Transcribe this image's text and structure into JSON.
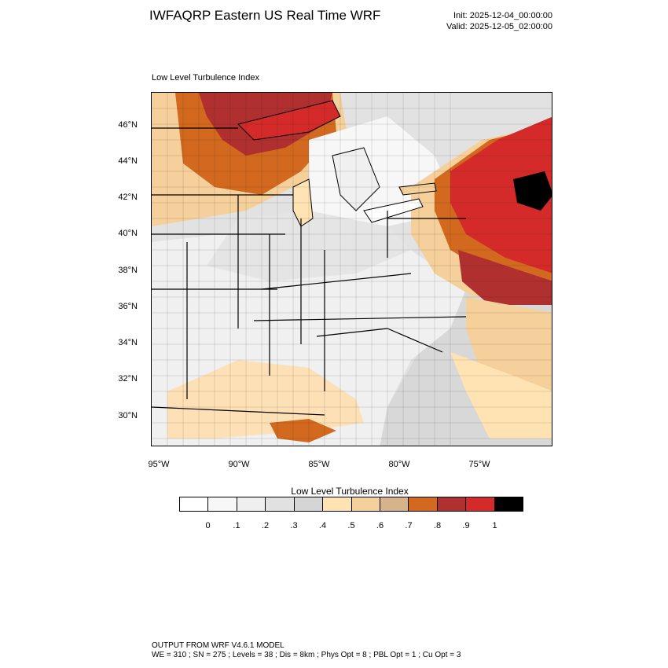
{
  "header": {
    "title": "IWFAQRP Eastern US Real Time WRF",
    "init": "Init: 2025-12-04_00:00:00",
    "valid": "Valid: 2025-12-05_02:00:00"
  },
  "plot": {
    "label": "Low Level Turbulence Index",
    "lat_labels": [
      "46°N",
      "44°N",
      "42°N",
      "40°N",
      "38°N",
      "36°N",
      "34°N",
      "32°N",
      "30°N"
    ],
    "lon_labels": [
      "95°W",
      "90°W",
      "85°W",
      "80°W",
      "75°W"
    ]
  },
  "colorbar": {
    "title": "Low Level Turbulence Index",
    "colors": [
      "#ffffff",
      "#f7f7f7",
      "#efefef",
      "#e1e1e1",
      "#d5d5d5",
      "#ffe3b3",
      "#f5d09a",
      "#d6b38a",
      "#d2691e",
      "#b03030",
      "#d42a2a",
      "#000000"
    ],
    "ticks": [
      "0",
      ".1",
      ".2",
      ".3",
      ".4",
      ".5",
      ".6",
      ".7",
      ".8",
      ".9",
      "1"
    ]
  },
  "footer": {
    "line1": "OUTPUT FROM WRF V4.6.1 MODEL",
    "line2": "WE = 310 ; SN = 275 ; Levels = 38 ; Dis = 8km ; Phys Opt = 8 ; PBL Opt = 1 ; Cu Opt = 3"
  }
}
